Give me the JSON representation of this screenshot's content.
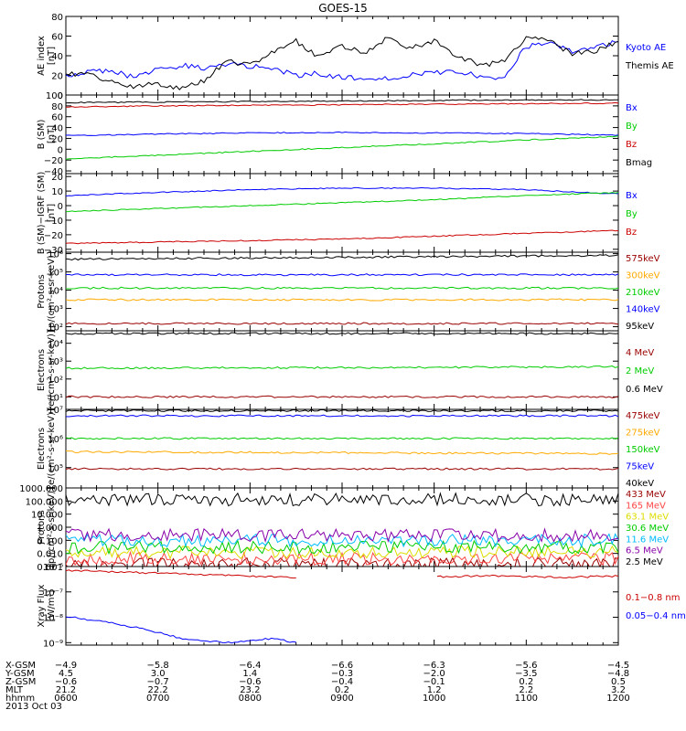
{
  "title": "GOES-15",
  "date_label": "2013 Oct 03",
  "colors": {
    "black": "#000000",
    "blue": "#0000ff",
    "green": "#00cc00",
    "red": "#cc0000",
    "orange": "#ffaa00",
    "yellow": "#dddd00",
    "cyan": "#00bbff",
    "purple": "#8800aa",
    "darkred": "#990000",
    "pink": "#ff4444"
  },
  "panels": [
    {
      "ylabel": [
        "AE index",
        "[nT]"
      ],
      "scale": "linear",
      "ylim": [
        0,
        80
      ],
      "ticks": [
        {
          "v": 0,
          "t": "0"
        },
        {
          "v": 20,
          "t": "20"
        },
        {
          "v": 40,
          "t": "40"
        },
        {
          "v": 60,
          "t": "60"
        },
        {
          "v": 80,
          "t": "80"
        }
      ],
      "legend": [
        {
          "t": "Kyoto AE",
          "c": "#0000ff"
        },
        {
          "t": "Themis AE",
          "c": "#000000"
        }
      ]
    },
    {
      "ylabel": [
        "B (SM)",
        "[nT]"
      ],
      "scale": "linear",
      "ylim": [
        -45,
        100
      ],
      "ticks": [
        {
          "v": -40,
          "t": "−40"
        },
        {
          "v": -20,
          "t": "−20"
        },
        {
          "v": 0,
          "t": "0"
        },
        {
          "v": 20,
          "t": "20"
        },
        {
          "v": 40,
          "t": "40"
        },
        {
          "v": 60,
          "t": "60"
        },
        {
          "v": 80,
          "t": "80"
        },
        {
          "v": 100,
          "t": "100"
        }
      ],
      "legend": [
        {
          "t": "Bx",
          "c": "#0000ff"
        },
        {
          "t": "By",
          "c": "#00cc00"
        },
        {
          "t": "Bz",
          "c": "#cc0000"
        },
        {
          "t": "Bmag",
          "c": "#000000"
        }
      ]
    },
    {
      "ylabel": [
        "B (SM)−IGRF (SM)",
        "[nT]"
      ],
      "scale": "linear",
      "ylim": [
        -32,
        22
      ],
      "ticks": [
        {
          "v": -30,
          "t": "−30"
        },
        {
          "v": -20,
          "t": "−20"
        },
        {
          "v": -10,
          "t": "−10"
        },
        {
          "v": 0,
          "t": "0"
        },
        {
          "v": 10,
          "t": "10"
        },
        {
          "v": 20,
          "t": "20"
        }
      ],
      "legend": [
        {
          "t": "Bx",
          "c": "#0000ff"
        },
        {
          "t": "By",
          "c": "#00cc00"
        },
        {
          "t": "Bz",
          "c": "#cc0000"
        }
      ]
    },
    {
      "ylabel": [
        "Protons",
        "[p/(cm²-s-sr-keV)]"
      ],
      "scale": "log",
      "ylim": [
        60,
        1200000
      ],
      "ticks": [
        {
          "v": 100,
          "t": "10²"
        },
        {
          "v": 1000,
          "t": "10³"
        },
        {
          "v": 10000,
          "t": "10⁴"
        },
        {
          "v": 100000,
          "t": "10⁵"
        },
        {
          "v": 1000000,
          "t": "10⁶"
        }
      ],
      "legend": [
        {
          "t": "575keV",
          "c": "#990000"
        },
        {
          "t": "300keV",
          "c": "#ffaa00"
        },
        {
          "t": "210keV",
          "c": "#00cc00"
        },
        {
          "t": "140keV",
          "c": "#0000ff"
        },
        {
          "t": "95keV",
          "c": "#000000"
        }
      ]
    },
    {
      "ylabel": [
        "Electrons",
        "[e/(cm²-s-sr-keV)]"
      ],
      "scale": "log",
      "ylim": [
        2,
        50000
      ],
      "ticks": [
        {
          "v": 10,
          "t": "10¹"
        },
        {
          "v": 100,
          "t": "10²"
        },
        {
          "v": 1000,
          "t": "10³"
        },
        {
          "v": 10000,
          "t": "10⁴"
        }
      ],
      "legend": [
        {
          "t": "4 MeV",
          "c": "#990000"
        },
        {
          "t": "2 MeV",
          "c": "#00cc00"
        },
        {
          "t": "0.6 MeV",
          "c": "#000000"
        }
      ]
    },
    {
      "ylabel": [
        "Electrons",
        "[e/(cm²-s-sr-keV)]"
      ],
      "scale": "log",
      "ylim": [
        20000,
        10000000
      ],
      "ticks": [
        {
          "v": 100000,
          "t": "10⁵"
        },
        {
          "v": 1000000,
          "t": "10⁶"
        },
        {
          "v": 10000000,
          "t": "10⁷"
        }
      ],
      "legend": [
        {
          "t": "475keV",
          "c": "#990000"
        },
        {
          "t": "275keV",
          "c": "#ffaa00"
        },
        {
          "t": "150keV",
          "c": "#00cc00"
        },
        {
          "t": "75keV",
          "c": "#0000ff"
        },
        {
          "t": "40keV",
          "c": "#000000"
        }
      ]
    },
    {
      "ylabel": [
        "Protons",
        "[p/(cm²-s-sr-keV)]"
      ],
      "scale": "log",
      "ylim": [
        0.001,
        1000
      ],
      "ticks": [
        {
          "v": 0.001,
          "t": "0.001"
        },
        {
          "v": 0.01,
          "t": "0.010"
        },
        {
          "v": 0.1,
          "t": "0.100"
        },
        {
          "v": 1,
          "t": "1.000"
        },
        {
          "v": 10,
          "t": "10.000"
        },
        {
          "v": 100,
          "t": "100.000"
        },
        {
          "v": 1000,
          "t": "1000.000"
        }
      ],
      "legend": [
        {
          "t": "433 MeV",
          "c": "#990000"
        },
        {
          "t": "165 MeV",
          "c": "#ff4444"
        },
        {
          "t": "63.1 MeV",
          "c": "#dddd00"
        },
        {
          "t": "30.6 MeV",
          "c": "#00cc00"
        },
        {
          "t": "11.6 MeV",
          "c": "#00bbff"
        },
        {
          "t": "6.5 MeV",
          "c": "#8800aa"
        },
        {
          "t": "2.5 MeV",
          "c": "#000000"
        }
      ]
    },
    {
      "ylabel": [
        "Xray Flux",
        "[W/m²]"
      ],
      "scale": "log",
      "ylim": [
        8e-10,
        1e-06
      ],
      "ticks": [
        {
          "v": 1e-09,
          "t": "10⁻⁹"
        },
        {
          "v": 1e-08,
          "t": "10⁻⁸"
        },
        {
          "v": 1e-07,
          "t": "10⁻⁷"
        },
        {
          "v": 1e-06,
          "t": "10⁻⁶"
        }
      ],
      "legend": [
        {
          "t": "0.1−0.8 nm",
          "c": "#cc0000"
        },
        {
          "t": "0.05−0.4 nm",
          "c": "#0000ff"
        }
      ]
    }
  ],
  "ephemeris": {
    "labels": [
      "X-GSM",
      "Y-GSM",
      "Z-GSM",
      "MLT",
      "hhmm"
    ],
    "columns": [
      [
        "−4.9",
        "4.5",
        "−0.6",
        "21.2",
        "0600"
      ],
      [
        "−5.8",
        "3.0",
        "−0.7",
        "22.2",
        "0700"
      ],
      [
        "−6.4",
        "1.4",
        "−0.6",
        "23.2",
        "0800"
      ],
      [
        "−6.6",
        "−0.3",
        "−0.4",
        "0.2",
        "0900"
      ],
      [
        "−6.3",
        "−2.0",
        "−0.1",
        "1.2",
        "1000"
      ],
      [
        "−5.6",
        "−3.5",
        "0.2",
        "2.2",
        "1100"
      ],
      [
        "−4.5",
        "−4.8",
        "0.5",
        "3.2",
        "1200"
      ]
    ]
  },
  "chart_data": {
    "type": "line",
    "title": "GOES-15",
    "x_range": [
      "2013-10-03 06:00",
      "2013-10-03 12:00"
    ],
    "x_tick_labels": [
      "0600",
      "0700",
      "0800",
      "0900",
      "1000",
      "1100",
      "1200"
    ],
    "panels": [
      {
        "ylabel": "AE index [nT]",
        "ylim": [
          0,
          80
        ],
        "series": [
          {
            "name": "Kyoto AE",
            "color": "#0000ff",
            "x": [
              6.0,
              6.25,
              6.5,
              6.75,
              7.0,
              7.25,
              7.5,
              7.75,
              8.0,
              8.25,
              8.5,
              8.75,
              9.0,
              9.25,
              9.5,
              9.75,
              10.0,
              10.25,
              10.5,
              10.75,
              11.0,
              11.25,
              11.5,
              11.75,
              12.0
            ],
            "y": [
              18,
              25,
              24,
              18,
              27,
              30,
              28,
              32,
              29,
              27,
              20,
              22,
              18,
              16,
              18,
              20,
              22,
              25,
              18,
              16,
              50,
              52,
              44,
              48,
              55
            ]
          },
          {
            "name": "Themis AE",
            "color": "#000000",
            "x": [
              6.0,
              6.25,
              6.5,
              6.75,
              7.0,
              7.25,
              7.5,
              7.75,
              8.0,
              8.25,
              8.5,
              8.75,
              9.0,
              9.25,
              9.5,
              9.75,
              10.0,
              10.25,
              10.5,
              10.75,
              11.0,
              11.25,
              11.5,
              11.75,
              12.0
            ],
            "y": [
              22,
              20,
              15,
              8,
              12,
              6,
              15,
              35,
              30,
              45,
              55,
              38,
              50,
              42,
              58,
              48,
              55,
              40,
              30,
              35,
              58,
              55,
              42,
              45,
              55
            ]
          }
        ]
      },
      {
        "ylabel": "B (SM) [nT]",
        "ylim": [
          -45,
          100
        ],
        "series": [
          {
            "name": "Bx",
            "color": "#0000ff",
            "x": [
              6,
              7,
              8,
              9,
              10,
              11,
              12
            ],
            "y": [
              25,
              28,
              30,
              31,
              30,
              29,
              26
            ]
          },
          {
            "name": "By",
            "color": "#00cc00",
            "x": [
              6,
              7,
              8,
              9,
              10,
              11,
              12
            ],
            "y": [
              -18,
              -11,
              -4,
              3,
              10,
              17,
              24
            ]
          },
          {
            "name": "Bz",
            "color": "#cc0000",
            "x": [
              6,
              7,
              8,
              9,
              10,
              11,
              12
            ],
            "y": [
              78,
              80,
              81,
              82,
              83,
              84,
              85
            ]
          },
          {
            "name": "Bmag",
            "color": "#000000",
            "x": [
              6,
              7,
              8,
              9,
              10,
              11,
              12
            ],
            "y": [
              86,
              87,
              88,
              89,
              90,
              91,
              91
            ]
          }
        ]
      },
      {
        "ylabel": "B (SM)-IGRF (SM) [nT]",
        "ylim": [
          -32,
          22
        ],
        "series": [
          {
            "name": "Bx",
            "color": "#0000ff",
            "x": [
              6,
              7,
              8,
              9,
              10,
              11,
              12
            ],
            "y": [
              7,
              9,
              11,
              12,
              12,
              11,
              8
            ]
          },
          {
            "name": "By",
            "color": "#00cc00",
            "x": [
              6,
              7,
              8,
              9,
              10,
              11,
              12
            ],
            "y": [
              -4,
              -2,
              0,
              2,
              4,
              7,
              9
            ]
          },
          {
            "name": "Bz",
            "color": "#cc0000",
            "x": [
              6,
              7,
              8,
              9,
              10,
              11,
              12
            ],
            "y": [
              -26,
              -25,
              -24,
              -23,
              -21,
              -19,
              -17
            ]
          }
        ]
      },
      {
        "ylabel": "Protons [p/(cm²-s-sr-keV)]",
        "ylim": [
          60,
          1200000
        ],
        "series": [
          {
            "name": "575keV",
            "color": "#990000",
            "x": [
              6,
              12
            ],
            "y": [
              150,
              150
            ]
          },
          {
            "name": "300keV",
            "color": "#ffaa00",
            "x": [
              6,
              12
            ],
            "y": [
              3000,
              3000
            ]
          },
          {
            "name": "210keV",
            "color": "#00cc00",
            "x": [
              6,
              12
            ],
            "y": [
              13000,
              13000
            ]
          },
          {
            "name": "140keV",
            "color": "#0000ff",
            "x": [
              6,
              12
            ],
            "y": [
              70000,
              70000
            ]
          },
          {
            "name": "95keV",
            "color": "#000000",
            "x": [
              6,
              12
            ],
            "y": [
              500000,
              800000
            ]
          }
        ]
      },
      {
        "ylabel": "Electrons [e/(cm²-s-sr-keV)]",
        "ylim": [
          2,
          50000
        ],
        "series": [
          {
            "name": "4 MeV",
            "color": "#990000",
            "x": [
              6,
              12
            ],
            "y": [
              10,
              10
            ]
          },
          {
            "name": "2 MeV",
            "color": "#00cc00",
            "x": [
              6,
              12
            ],
            "y": [
              400,
              480
            ]
          },
          {
            "name": "0.6 MeV",
            "color": "#000000",
            "x": [
              6,
              12
            ],
            "y": [
              35000,
              35000
            ]
          }
        ]
      },
      {
        "ylabel": "Electrons [e/(cm²-s-sr-keV)]",
        "ylim": [
          20000,
          10000000
        ],
        "series": [
          {
            "name": "475keV",
            "color": "#990000",
            "x": [
              6,
              12
            ],
            "y": [
              90000,
              90000
            ]
          },
          {
            "name": "275keV",
            "color": "#ffaa00",
            "x": [
              6,
              12
            ],
            "y": [
              350000,
              300000
            ]
          },
          {
            "name": "150keV",
            "color": "#00cc00",
            "x": [
              6,
              12
            ],
            "y": [
              1000000,
              1000000
            ]
          },
          {
            "name": "75keV",
            "color": "#0000ff",
            "x": [
              6,
              12
            ],
            "y": [
              6000000,
              6000000
            ]
          },
          {
            "name": "40keV",
            "color": "#000000",
            "x": [
              6,
              12
            ],
            "y": [
              9000000,
              9000000
            ]
          }
        ]
      },
      {
        "ylabel": "Protons [p/(cm²-s-sr-keV)]",
        "ylim": [
          0.001,
          1000
        ],
        "series": [
          {
            "name": "433 MeV",
            "color": "#990000",
            "x": [
              6,
              12
            ],
            "y": [
              0.0015,
              0.0015
            ]
          },
          {
            "name": "165 MeV",
            "color": "#ff4444",
            "x": [
              6,
              12
            ],
            "y": [
              0.004,
              0.004
            ]
          },
          {
            "name": "63.1 MeV",
            "color": "#dddd00",
            "x": [
              6,
              12
            ],
            "y": [
              0.012,
              0.012
            ]
          },
          {
            "name": "30.6 MeV",
            "color": "#00cc00",
            "x": [
              6,
              12
            ],
            "y": [
              0.03,
              0.03
            ]
          },
          {
            "name": "11.6 MeV",
            "color": "#00bbff",
            "x": [
              6,
              12
            ],
            "y": [
              0.1,
              0.1
            ]
          },
          {
            "name": "6.5 MeV",
            "color": "#8800aa",
            "x": [
              6,
              12
            ],
            "y": [
              0.25,
              0.25
            ]
          },
          {
            "name": "2.5 MeV",
            "color": "#000000",
            "x": [
              6,
              12
            ],
            "y": [
              130,
              130
            ]
          }
        ]
      },
      {
        "ylabel": "Xray Flux [W/m²]",
        "ylim": [
          8e-10,
          1e-06
        ],
        "series": [
          {
            "name": "0.1-0.8 nm",
            "color": "#cc0000",
            "x": [
              6.0,
              6.5,
              7.0,
              7.5,
              8.0,
              8.5,
              9.0,
              9.5,
              10.0,
              10.5,
              11.0,
              11.5,
              12.0
            ],
            "y": [
              7e-07,
              6.2e-07,
              5.5e-07,
              4.8e-07,
              4.2e-07,
              3.8e-07,
              null,
              null,
              3.9e-07,
              4.3e-07,
              4e-07,
              3.8e-07,
              4.2e-07
            ]
          },
          {
            "name": "0.05-0.4 nm",
            "color": "#0000ff",
            "x": [
              6.0,
              6.25,
              6.5,
              6.75,
              7.0,
              7.25,
              7.5,
              7.75,
              8.0,
              8.25,
              8.5
            ],
            "y": [
              1.1e-08,
              8e-09,
              6e-09,
              4e-09,
              2.5e-09,
              1.5e-09,
              1.2e-09,
              1e-09,
              1.2e-09,
              1.5e-09,
              1e-09
            ]
          }
        ]
      }
    ]
  }
}
